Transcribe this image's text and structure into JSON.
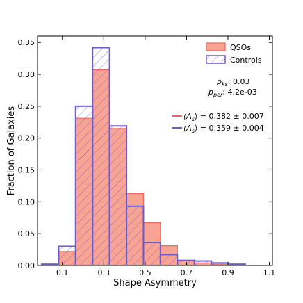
{
  "chart_data": {
    "type": "bar",
    "subtype": "histogram",
    "xlabel": "Shape Asymmetry",
    "ylabel": "Fraction of Galaxies",
    "xlim": [
      -0.02,
      1.115
    ],
    "ylim": [
      0,
      0.36
    ],
    "x_ticks": [
      0.1,
      0.3,
      0.5,
      0.7,
      0.9,
      1.1
    ],
    "x_tick_labels": [
      "0.1",
      "0.3",
      "0.5",
      "0.7",
      "0.9",
      "1.1"
    ],
    "y_ticks": [
      0.0,
      0.05,
      0.1,
      0.15,
      0.2,
      0.25,
      0.3,
      0.35
    ],
    "y_tick_labels": [
      "0.00",
      "0.05",
      "0.10",
      "0.15",
      "0.20",
      "0.25",
      "0.30",
      "0.35"
    ],
    "bin_edges": [
      0.0,
      0.082,
      0.164,
      0.246,
      0.328,
      0.41,
      0.492,
      0.574,
      0.656,
      0.738,
      0.82,
      0.902,
      0.984,
      1.066
    ],
    "series": [
      {
        "name": "QSOs",
        "style": "filled",
        "fill_color": "#f9a393",
        "edge_color": "#f0675a",
        "values": [
          0.002,
          0.022,
          0.231,
          0.307,
          0.215,
          0.113,
          0.067,
          0.031,
          0.008,
          0.004,
          0.002,
          0.0,
          0.0
        ]
      },
      {
        "name": "Controls",
        "style": "hatched",
        "edge_color": "#6a5acd",
        "values": [
          0.002,
          0.03,
          0.25,
          0.342,
          0.219,
          0.093,
          0.036,
          0.017,
          0.008,
          0.007,
          0.004,
          0.002,
          0.0
        ]
      }
    ],
    "stats": {
      "p_ks_label": "p_ks: 0.03",
      "p_per_label": "p_per: 4.2e-03"
    },
    "mean_lines": [
      {
        "name": "QSOs",
        "color": "#f0675a",
        "label": "⟨A_s⟩ = 0.382 ± 0.007"
      },
      {
        "name": "Controls",
        "color": "#6a5acd",
        "label": "⟨A_s⟩ = 0.359 ± 0.004"
      }
    ],
    "legend_position": "top-right",
    "grid": false
  },
  "annotations": {
    "pks_name": "p",
    "pks_sub": "ks",
    "pks_value": ": 0.03",
    "pper_name": "p",
    "pper_sub": "per",
    "pper_value": ": 4.2e-03",
    "mean_qso_sym": "⟨A",
    "mean_qso_sub": "s",
    "mean_qso_val": "⟩ = 0.382 ± 0.007",
    "mean_ctrl_sym": "⟨A",
    "mean_ctrl_sub": "s",
    "mean_ctrl_val": "⟩ = 0.359 ± 0.004"
  }
}
